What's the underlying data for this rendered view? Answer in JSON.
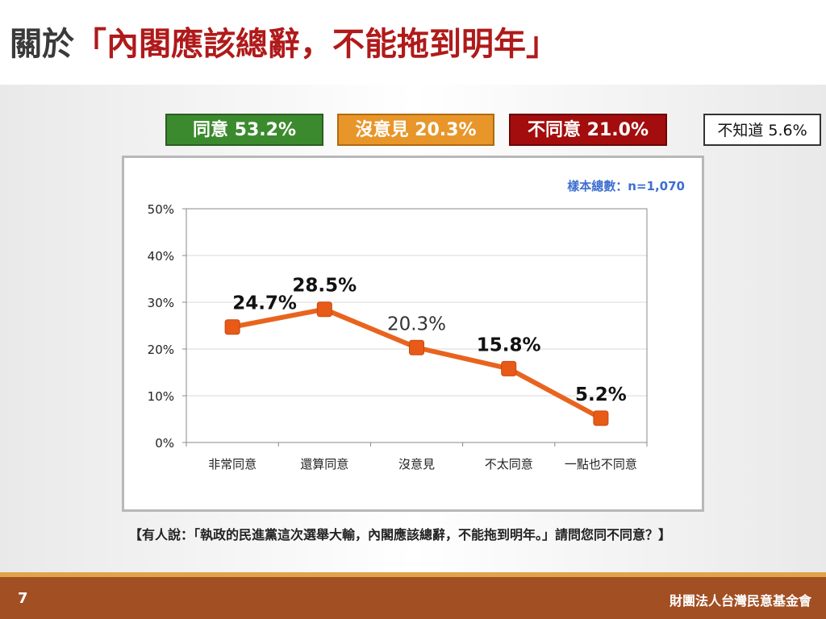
{
  "title": {
    "prefix": "關於",
    "quote": "「內閣應該總辭，不能拖到明年」"
  },
  "summary": {
    "agree": "同意 53.2%",
    "neutral": "沒意見 20.3%",
    "disagree": "不同意 21.0%",
    "unknown": "不知道 5.6%"
  },
  "colors": {
    "agree": "#3c8a2e",
    "neutral": "#e8962a",
    "disagree": "#a30d0d",
    "line": "#e8641e",
    "footer": "#a24f23"
  },
  "chart_data": {
    "type": "line",
    "sample_size": "樣本總數：n=1,070",
    "categories": [
      "非常同意",
      "還算同意",
      "沒意見",
      "不太同意",
      "一點也不同意"
    ],
    "values": [
      24.7,
      28.5,
      20.3,
      15.8,
      5.2
    ],
    "data_labels": [
      "24.7%",
      "28.5%",
      "20.3%",
      "15.8%",
      "5.2%"
    ],
    "yticks": [
      "0%",
      "10%",
      "20%",
      "30%",
      "40%",
      "50%"
    ],
    "ylim": [
      0,
      50
    ],
    "grid": true
  },
  "question": "【有人說：「執政的民進黨這次選舉大輸，內閣應該總辭，不能拖到明年。」請問您同不同意？】",
  "footer": {
    "page": "7",
    "org": "財團法人台灣民意基金會"
  }
}
